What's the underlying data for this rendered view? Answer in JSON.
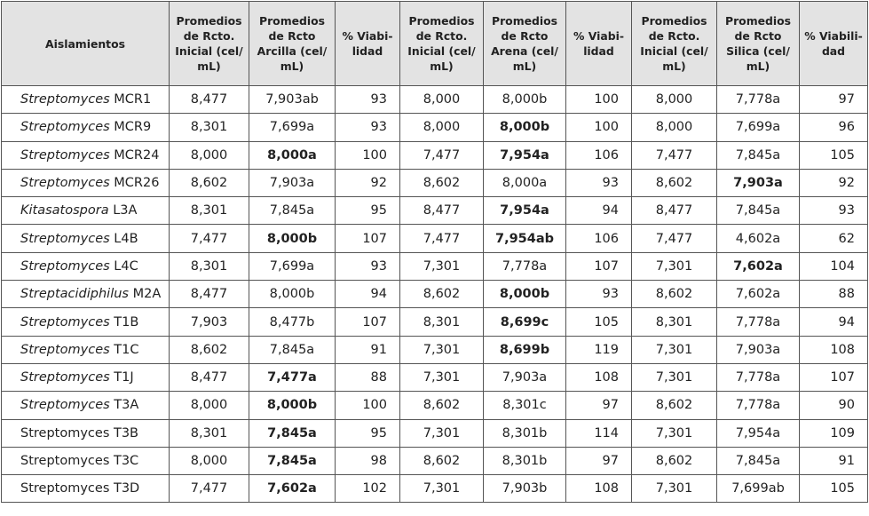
{
  "columns": [
    "Aislamientos",
    "Promedios de Rcto. Inicial (cel/ mL)",
    "Promedios de Rcto Arcilla (cel/ mL)",
    "% Viabi- lidad",
    "Promedios de Rcto. Inicial (cel/ mL)",
    "Promedios de Rcto Arena (cel/ mL)",
    "% Viabi- lidad",
    "Promedios de Rcto. Inicial (cel/ mL)",
    "Promedios de Rcto Silica (cel/ mL)",
    "% Viabili- dad"
  ],
  "rows": [
    {
      "genus": "Streptomyces",
      "strain": " MCR1",
      "italic": true,
      "values": [
        "8,477",
        "7,903ab",
        "93",
        "8,000",
        "8,000b",
        "100",
        "8,000",
        "7,778a",
        "97"
      ],
      "bold": [
        false,
        false,
        false,
        false,
        false,
        false,
        false,
        false,
        false
      ]
    },
    {
      "genus": "Streptomyces",
      "strain": " MCR9",
      "italic": true,
      "values": [
        "8,301",
        "7,699a",
        "93",
        "8,000",
        "8,000b",
        "100",
        "8,000",
        "7,699a",
        "96"
      ],
      "bold": [
        false,
        false,
        false,
        false,
        true,
        false,
        false,
        false,
        false
      ]
    },
    {
      "genus": "Streptomyces",
      "strain": " MCR24",
      "italic": true,
      "values": [
        "8,000",
        "8,000a",
        "100",
        "7,477",
        "7,954a",
        "106",
        "7,477",
        "7,845a",
        "105"
      ],
      "bold": [
        false,
        true,
        false,
        false,
        true,
        false,
        false,
        false,
        false
      ]
    },
    {
      "genus": "Streptomyces",
      "strain": " MCR26",
      "italic": true,
      "values": [
        "8,602",
        "7,903a",
        "92",
        "8,602",
        "8,000a",
        "93",
        "8,602",
        "7,903a",
        "92"
      ],
      "bold": [
        false,
        false,
        false,
        false,
        false,
        false,
        false,
        true,
        false
      ]
    },
    {
      "genus": "Kitasatospora",
      "strain": " L3A",
      "italic": true,
      "values": [
        "8,301",
        "7,845a",
        "95",
        "8,477",
        "7,954a",
        "94",
        "8,477",
        "7,845a",
        "93"
      ],
      "bold": [
        false,
        false,
        false,
        false,
        true,
        false,
        false,
        false,
        false
      ]
    },
    {
      "genus": "Streptomyces",
      "strain": " L4B",
      "italic": true,
      "values": [
        "7,477",
        "8,000b",
        "107",
        "7,477",
        "7,954ab",
        "106",
        "7,477",
        "4,602a",
        "62"
      ],
      "bold": [
        false,
        true,
        false,
        false,
        true,
        false,
        false,
        false,
        false
      ]
    },
    {
      "genus": "Streptomyces",
      "strain": " L4C",
      "italic": true,
      "values": [
        "8,301",
        "7,699a",
        "93",
        "7,301",
        "7,778a",
        "107",
        "7,301",
        "7,602a",
        "104"
      ],
      "bold": [
        false,
        false,
        false,
        false,
        false,
        false,
        false,
        true,
        false
      ]
    },
    {
      "genus": "Streptacidiphilus",
      "strain": " M2A",
      "italic": true,
      "values": [
        "8,477",
        "8,000b",
        "94",
        "8,602",
        "8,000b",
        "93",
        "8,602",
        "7,602a",
        "88"
      ],
      "bold": [
        false,
        false,
        false,
        false,
        true,
        false,
        false,
        false,
        false
      ]
    },
    {
      "genus": "Streptomyces",
      "strain": " T1B",
      "italic": true,
      "values": [
        "7,903",
        "8,477b",
        "107",
        "8,301",
        "8,699c",
        "105",
        "8,301",
        "7,778a",
        "94"
      ],
      "bold": [
        false,
        false,
        false,
        false,
        true,
        false,
        false,
        false,
        false
      ]
    },
    {
      "genus": "Streptomyces",
      "strain": " T1C",
      "italic": true,
      "values": [
        "8,602",
        "7,845a",
        "91",
        "7,301",
        "8,699b",
        "119",
        "7,301",
        "7,903a",
        "108"
      ],
      "bold": [
        false,
        false,
        false,
        false,
        true,
        false,
        false,
        false,
        false
      ]
    },
    {
      "genus": "Streptomyces",
      "strain": " T1J",
      "italic": true,
      "values": [
        "8,477",
        "7,477a",
        "88",
        "7,301",
        "7,903a",
        "108",
        "7,301",
        "7,778a",
        "107"
      ],
      "bold": [
        false,
        true,
        false,
        false,
        false,
        false,
        false,
        false,
        false
      ]
    },
    {
      "genus": "Streptomyces",
      "strain": " T3A",
      "italic": true,
      "values": [
        "8,000",
        "8,000b",
        "100",
        "8,602",
        "8,301c",
        "97",
        "8,602",
        "7,778a",
        "90"
      ],
      "bold": [
        false,
        true,
        false,
        false,
        false,
        false,
        false,
        false,
        false
      ]
    },
    {
      "genus": "Streptomyces T3B",
      "strain": "",
      "italic": false,
      "values": [
        "8,301",
        "7,845a",
        "95",
        "7,301",
        "8,301b",
        "114",
        "7,301",
        "7,954a",
        "109"
      ],
      "bold": [
        false,
        true,
        false,
        false,
        false,
        false,
        false,
        false,
        false
      ]
    },
    {
      "genus": "Streptomyces T3C",
      "strain": "",
      "italic": false,
      "values": [
        "8,000",
        "7,845a",
        "98",
        "8,602",
        "8,301b",
        "97",
        "8,602",
        "7,845a",
        "91"
      ],
      "bold": [
        false,
        true,
        false,
        false,
        false,
        false,
        false,
        false,
        false
      ]
    },
    {
      "genus": "Streptomyces  T3D",
      "strain": "",
      "italic": false,
      "values": [
        "7,477",
        "7,602a",
        "102",
        "7,301",
        "7,903b",
        "108",
        "7,301",
        "7,699ab",
        "105"
      ],
      "bold": [
        false,
        true,
        false,
        false,
        false,
        false,
        false,
        false,
        false
      ]
    }
  ]
}
